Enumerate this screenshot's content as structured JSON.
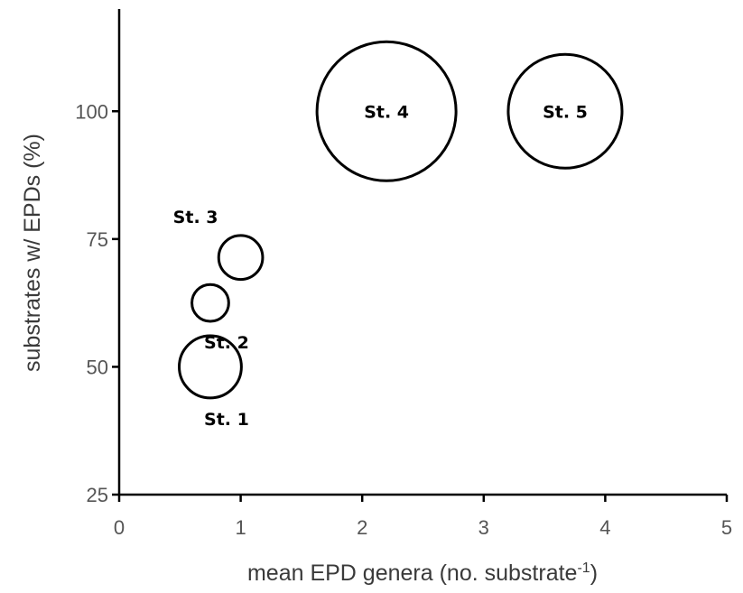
{
  "chart_data": {
    "type": "scatter",
    "variant": "bubble",
    "title": "",
    "xlabel": "mean EPD genera (no. substrate",
    "xlabel_superscript": "-1",
    "xlabel_suffix": ")",
    "ylabel": "substrates w/ EPDs (%)",
    "xlim": [
      0,
      5
    ],
    "ylim": [
      25,
      120
    ],
    "xticks": [
      0,
      1,
      2,
      3,
      4,
      5
    ],
    "yticks": [
      25,
      50,
      75,
      100
    ],
    "grid": false,
    "legend": "none",
    "points": [
      {
        "label": "St. 1",
        "x": 0.75,
        "y": 50,
        "size": 0.2,
        "label_position": "below-right"
      },
      {
        "label": "St. 2",
        "x": 0.75,
        "y": 62.5,
        "size": 0.07,
        "label_position": "below-right"
      },
      {
        "label": "St. 3",
        "x": 1.0,
        "y": 71.4,
        "size": 0.1,
        "label_position": "above-left"
      },
      {
        "label": "St. 4",
        "x": 2.2,
        "y": 100,
        "size": 1.0,
        "label_position": "center"
      },
      {
        "label": "St. 5",
        "x": 3.67,
        "y": 100,
        "size": 0.67,
        "label_position": "center"
      }
    ]
  }
}
